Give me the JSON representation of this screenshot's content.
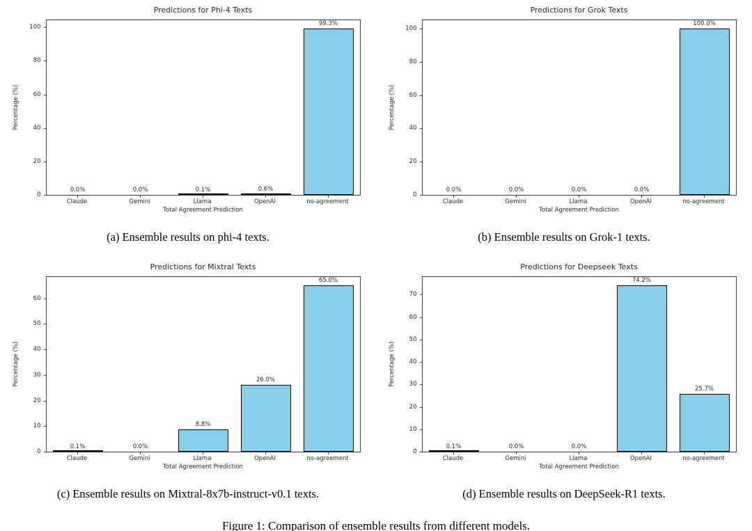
{
  "figure": {
    "caption": "Figure 1: Comparison of ensemble results from different models."
  },
  "chart_data": [
    {
      "type": "bar",
      "title": "Predictions for Phi-4 Texts",
      "caption": "(a) Ensemble results on phi-4 texts.",
      "categories": [
        "Claude",
        "Gemini",
        "Llama",
        "OpenAI",
        "no-agreement"
      ],
      "values": [
        0.0,
        0.0,
        0.1,
        0.6,
        99.3
      ],
      "bar_labels": [
        "0.0%",
        "0.0%",
        "0.1%",
        "0.6%",
        "99.3%"
      ],
      "xlabel": "Total Agreement Prediction",
      "ylabel": "Percentage (%)",
      "ylim": [
        0,
        104.3
      ],
      "yticks": [
        0,
        20,
        40,
        60,
        80,
        100
      ],
      "bar_color": "#87CEEB",
      "bar_edge_color": "#000000",
      "grid": false,
      "legend": "none"
    },
    {
      "type": "bar",
      "title": "Predictions for Grok Texts",
      "caption": "(b) Ensemble results on Grok-1 texts.",
      "categories": [
        "Claude",
        "Gemini",
        "Llama",
        "OpenAI",
        "no-agreement"
      ],
      "values": [
        0.0,
        0.0,
        0.0,
        0.0,
        100.0
      ],
      "bar_labels": [
        "0.0%",
        "0.0%",
        "0.0%",
        "0.0%",
        "100.0%"
      ],
      "xlabel": "Total Agreement Prediction",
      "ylabel": "Percentage (%)",
      "ylim": [
        0,
        105
      ],
      "yticks": [
        0,
        20,
        40,
        60,
        80,
        100
      ],
      "bar_color": "#87CEEB",
      "bar_edge_color": "#000000",
      "grid": false,
      "legend": "none"
    },
    {
      "type": "bar",
      "title": "Predictions for Mixtral Texts",
      "caption": "(c) Ensemble results on Mixtral-8x7b-instruct-v0.1 texts.",
      "categories": [
        "Claude",
        "Gemini",
        "Llama",
        "OpenAI",
        "no-agreement"
      ],
      "values": [
        0.1,
        0.0,
        8.8,
        26.0,
        65.0
      ],
      "bar_labels": [
        "0.1%",
        "0.0%",
        "8.8%",
        "26.0%",
        "65.0%"
      ],
      "xlabel": "Total Agreement Prediction",
      "ylabel": "Percentage (%)",
      "ylim": [
        0,
        68.3
      ],
      "yticks": [
        0,
        10,
        20,
        30,
        40,
        50,
        60
      ],
      "bar_color": "#87CEEB",
      "bar_edge_color": "#000000",
      "grid": false,
      "legend": "none"
    },
    {
      "type": "bar",
      "title": "Predictions for Deepseek Texts",
      "caption": "(d) Ensemble results on DeepSeek-R1 texts.",
      "categories": [
        "Claude",
        "Gemini",
        "Llama",
        "OpenAI",
        "no-agreement"
      ],
      "values": [
        0.1,
        0.0,
        0.0,
        74.2,
        25.7
      ],
      "bar_labels": [
        "0.1%",
        "0.0%",
        "0.0%",
        "74.2%",
        "25.7%"
      ],
      "xlabel": "Total Agreement Prediction",
      "ylabel": "Percentage (%)",
      "ylim": [
        0,
        77.9
      ],
      "yticks": [
        0,
        10,
        20,
        30,
        40,
        50,
        60,
        70
      ],
      "bar_color": "#87CEEB",
      "bar_edge_color": "#000000",
      "grid": false,
      "legend": "none"
    }
  ]
}
